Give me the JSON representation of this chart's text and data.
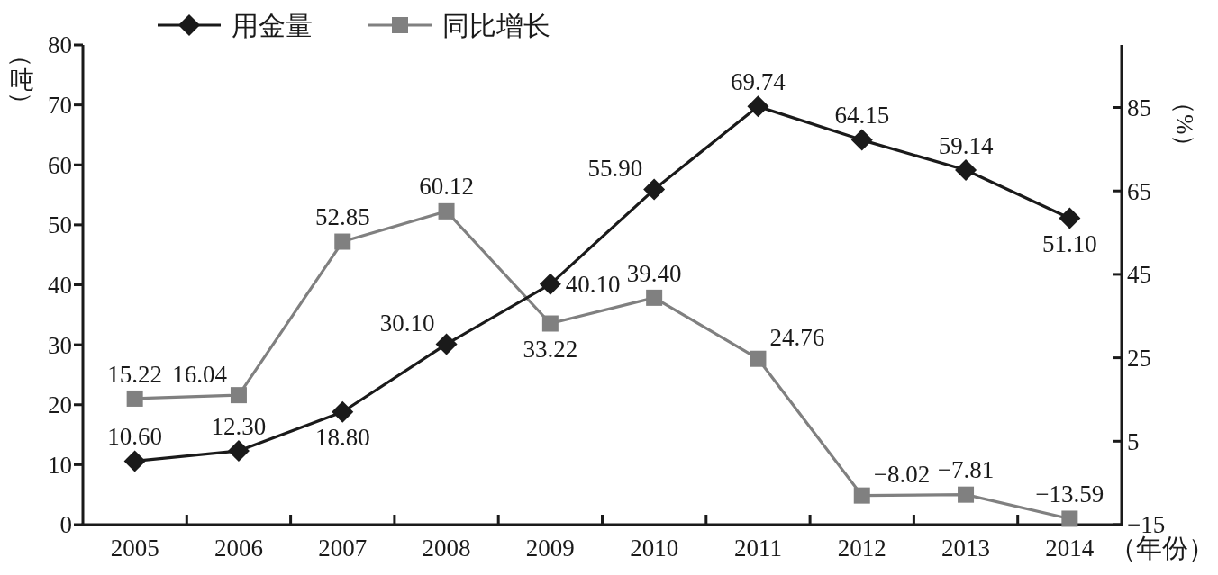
{
  "chart_data": {
    "type": "line",
    "xlabel": "（年份）",
    "ylabel": "（吨）",
    "y2label": "（%）",
    "categories": [
      "2005",
      "2006",
      "2007",
      "2008",
      "2009",
      "2010",
      "2011",
      "2012",
      "2013",
      "2014"
    ],
    "series": [
      {
        "name": "用金量",
        "color": "#1a1a1a",
        "marker": "diamond",
        "values": [
          10.6,
          12.3,
          18.8,
          30.1,
          40.1,
          55.9,
          69.74,
          64.15,
          59.14,
          51.1
        ],
        "value_labels": [
          "10.60",
          "12.30",
          "18.80",
          "30.10",
          "40.10",
          "55.90",
          "69.74",
          "64.15",
          "59.14",
          "51.10"
        ]
      },
      {
        "name": "同比增长",
        "color": "#808080",
        "marker": "square",
        "axis": "y2",
        "values": [
          15.22,
          16.04,
          52.85,
          60.12,
          33.22,
          39.4,
          24.76,
          -8.02,
          -7.81,
          -13.59
        ],
        "value_labels": [
          "15.22",
          "16.04",
          "52.85",
          "60.12",
          "33.22",
          "39.40",
          "24.76",
          "−8.02",
          "−7.81",
          "−13.59"
        ]
      }
    ],
    "ylim": [
      0,
      80
    ],
    "yticks": [
      0,
      10,
      20,
      30,
      40,
      50,
      60,
      70,
      80
    ],
    "y2lim": [
      -15,
      100
    ],
    "y2ticks": [
      -15,
      5,
      25,
      45,
      65,
      85
    ],
    "legend": "top left",
    "grid": false,
    "line_style": "solid"
  }
}
